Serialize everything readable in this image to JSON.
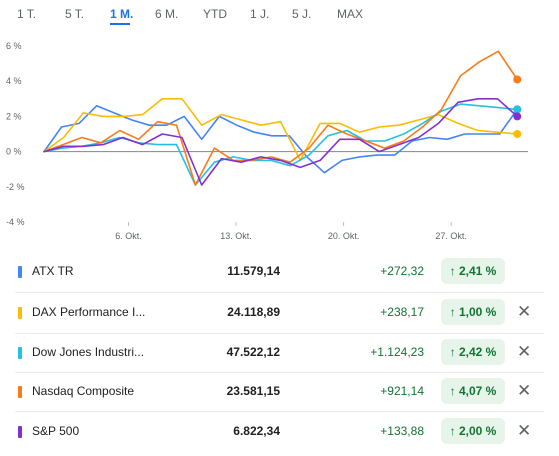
{
  "tabs": [
    {
      "label": "1 T.",
      "active": false
    },
    {
      "label": "5 T.",
      "active": false
    },
    {
      "label": "1 M.",
      "active": true
    },
    {
      "label": "6 M.",
      "active": false
    },
    {
      "label": "YTD",
      "active": false
    },
    {
      "label": "1 J.",
      "active": false
    },
    {
      "label": "5 J.",
      "active": false
    },
    {
      "label": "MAX",
      "active": false
    }
  ],
  "chart_data": {
    "type": "line",
    "y_ticks": [
      "6 %",
      "4 %",
      "2 %",
      "0 %",
      "-2 %",
      "-4 %"
    ],
    "y_tick_values": [
      6,
      4,
      2,
      0,
      -2,
      -4
    ],
    "ylim": [
      -4,
      6
    ],
    "x_ticks": [
      "6. Okt.",
      "13. Okt.",
      "20. Okt.",
      "27. Okt."
    ],
    "x_tick_positions": [
      5.5,
      12.5,
      19.5,
      26.5
    ],
    "xlim": [
      0,
      31.5
    ],
    "grid": false,
    "series": [
      {
        "name": "ATX TR",
        "color": "#4285f4",
        "values": [
          0.0,
          1.4,
          1.6,
          2.6,
          2.2,
          1.8,
          1.5,
          1.5,
          2.0,
          0.7,
          2.0,
          1.5,
          1.1,
          0.9,
          0.9,
          -0.3,
          -1.2,
          -0.5,
          -0.3,
          -0.2,
          -0.2,
          0.6,
          0.8,
          0.7,
          1.0,
          1.0,
          1.0,
          2.4
        ]
      },
      {
        "name": "DAX Performance I...",
        "color": "#fbbc04",
        "values": [
          0.0,
          0.8,
          2.2,
          2.0,
          2.0,
          2.1,
          3.0,
          3.0,
          1.5,
          2.1,
          1.8,
          1.5,
          1.7,
          -0.5,
          1.6,
          1.6,
          1.1,
          1.4,
          1.5,
          1.8,
          2.1,
          1.6,
          1.2,
          1.1,
          1.0
        ]
      },
      {
        "name": "Dow Jones Industri...",
        "color": "#24c1e0",
        "values": [
          0.0,
          0.2,
          0.3,
          0.5,
          0.8,
          0.5,
          0.4,
          0.4,
          -1.9,
          -0.6,
          -0.3,
          -0.5,
          -0.5,
          -0.8,
          -0.2,
          0.9,
          1.2,
          0.6,
          0.6,
          1.0,
          1.6,
          2.3,
          2.7,
          2.6,
          2.5,
          2.4
        ]
      },
      {
        "name": "Nasdaq Composite",
        "color": "#fa7b17",
        "values": [
          0.0,
          0.4,
          0.8,
          0.5,
          1.2,
          0.7,
          1.7,
          1.5,
          -1.9,
          0.2,
          -0.5,
          -0.5,
          -0.3,
          -0.6,
          0.2,
          1.5,
          1.0,
          0.6,
          0.2,
          0.6,
          1.4,
          2.4,
          4.3,
          5.1,
          5.7,
          4.1
        ]
      },
      {
        "name": "S&P 500",
        "color": "#8430ce",
        "values": [
          0.0,
          0.3,
          0.3,
          0.4,
          0.8,
          0.4,
          1.0,
          0.8,
          -1.9,
          -0.4,
          -0.6,
          -0.3,
          -0.5,
          -0.9,
          -0.5,
          0.7,
          0.7,
          0.0,
          0.4,
          0.8,
          1.6,
          2.8,
          3.0,
          3.0,
          2.0
        ]
      }
    ]
  },
  "table": {
    "rows": [
      {
        "name": "ATX TR",
        "color": "#4285f4",
        "price": "11.579,14",
        "change": "+272,32",
        "pct": "2,41 %",
        "arrow": "↑",
        "removable": false
      },
      {
        "name": "DAX Performance I...",
        "color": "#fbbc04",
        "price": "24.118,89",
        "change": "+238,17",
        "pct": "1,00 %",
        "arrow": "↑",
        "removable": true
      },
      {
        "name": "Dow Jones Industri...",
        "color": "#24c1e0",
        "price": "47.522,12",
        "change": "+1.124,23",
        "pct": "2,42 %",
        "arrow": "↑",
        "removable": true
      },
      {
        "name": "Nasdaq Composite",
        "color": "#fa7b17",
        "price": "23.581,15",
        "change": "+921,14",
        "pct": "4,07 %",
        "arrow": "↑",
        "removable": true
      },
      {
        "name": "S&P 500",
        "color": "#8430ce",
        "price": "6.822,34",
        "change": "+133,88",
        "pct": "2,00 %",
        "arrow": "↑",
        "removable": true
      }
    ],
    "close_glyph": "✕"
  },
  "colors": {
    "accent": "#1a73e8",
    "positive": "#137333",
    "positive_bg": "#e6f4ea"
  }
}
